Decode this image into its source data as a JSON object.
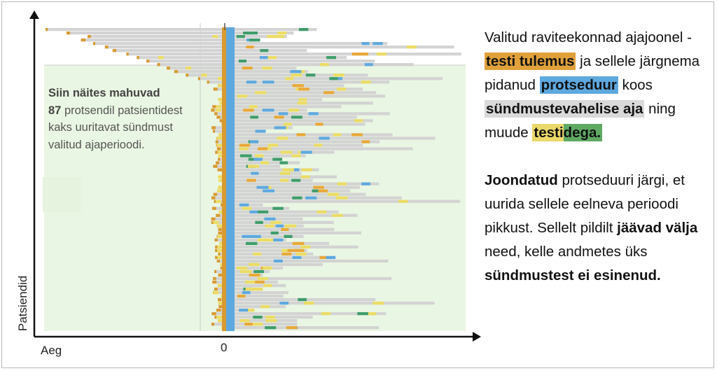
{
  "chart_data": {
    "type": "timeline",
    "title": "",
    "xlabel": "Aeg",
    "ylabel": "Patsiendid",
    "x_tick_label": "0",
    "colors": {
      "test_result": "#d99a30",
      "procedure": "#5ea8e0",
      "between_events": "#d3d3d3",
      "test_yellow": "#ecdc64",
      "test_green": "#3f9d6b",
      "test_blue": "#5ea8e0",
      "test_orange": "#e9a838",
      "highlight_region": "#e9f6e3"
    },
    "annotation": {
      "lead": "Siin näites mahuvad",
      "pct": "87",
      "rest": "protsendil patsientidest kaks uuritavat sündmust valitud ajaperioodi."
    }
  },
  "description": {
    "p1_a": "Valitud raviteekonnad ajajoonel - ",
    "p1_test": "testi tulemus",
    "p1_b": " ja sellele järgnema pidanud ",
    "p1_proc": "protseduur",
    "p1_c": " koos ",
    "p1_time": "sündmustevahelise aja",
    "p1_d": " ning muude ",
    "p1_tests_yellow": "testi",
    "p1_tests_green": "dega.",
    "p2_bold1": "Joondatud",
    "p2_a": " protseduuri järgi, et uurida sellele eelneva perioodi pikkust. Sellelt pildilt ",
    "p2_bold2": "jäävad välja",
    "p2_b": " need, kelle andmetes üks ",
    "p2_bold3": "sündmustest ei esinenud."
  }
}
